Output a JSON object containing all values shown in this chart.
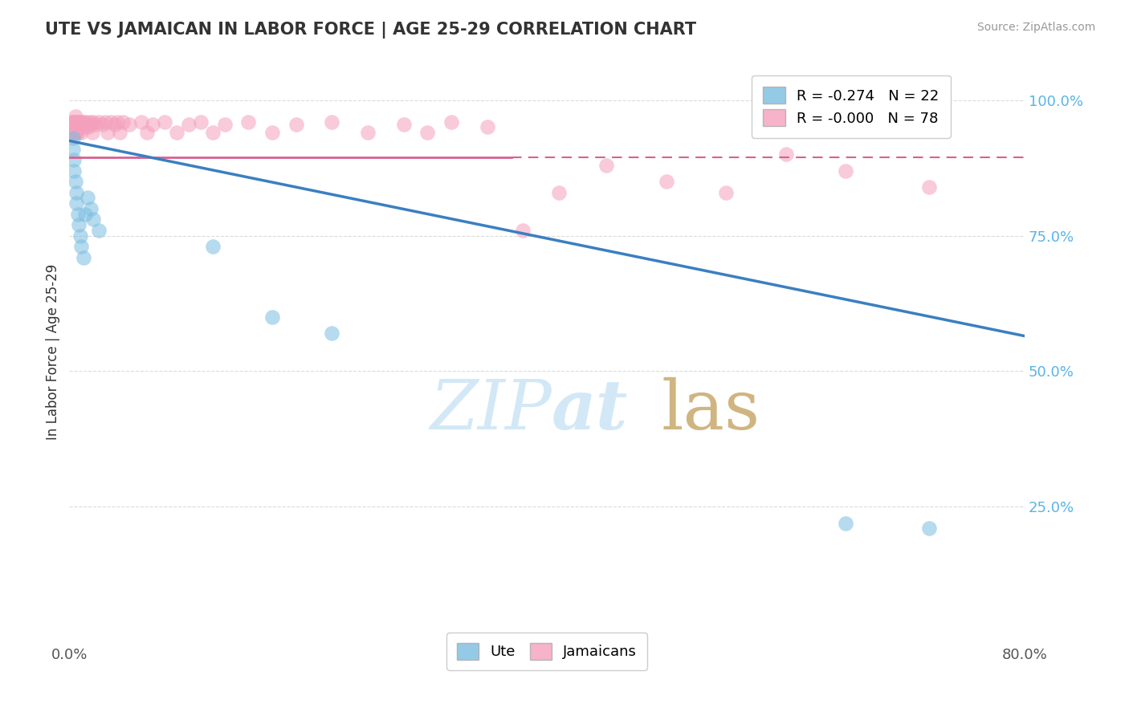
{
  "title": "UTE VS JAMAICAN IN LABOR FORCE | AGE 25-29 CORRELATION CHART",
  "source": "Source: ZipAtlas.com",
  "ylabel": "In Labor Force | Age 25-29",
  "xlim": [
    0.0,
    0.8
  ],
  "ylim": [
    0.0,
    1.07
  ],
  "yticks": [
    0.25,
    0.5,
    0.75,
    1.0
  ],
  "yticklabels": [
    "25.0%",
    "50.0%",
    "75.0%",
    "100.0%"
  ],
  "ute_R": -0.274,
  "ute_N": 22,
  "jamaican_R": -0.0,
  "jamaican_N": 78,
  "ute_color": "#7bbde0",
  "jamaican_color": "#f4a0bc",
  "ute_line_color": "#3a7fc1",
  "jamaican_line_color": "#d96090",
  "jamaican_line_solid_end": 0.37,
  "background_color": "#ffffff",
  "grid_color": "#cccccc",
  "ute_x": [
    0.003,
    0.003,
    0.004,
    0.004,
    0.005,
    0.006,
    0.006,
    0.007,
    0.008,
    0.009,
    0.01,
    0.012,
    0.013,
    0.015,
    0.018,
    0.02,
    0.025,
    0.12,
    0.17,
    0.22,
    0.65,
    0.72
  ],
  "ute_y": [
    0.93,
    0.91,
    0.89,
    0.87,
    0.85,
    0.83,
    0.81,
    0.79,
    0.77,
    0.75,
    0.73,
    0.71,
    0.79,
    0.82,
    0.8,
    0.78,
    0.76,
    0.73,
    0.6,
    0.57,
    0.22,
    0.21
  ],
  "jamaican_x": [
    0.001,
    0.001,
    0.002,
    0.002,
    0.002,
    0.003,
    0.003,
    0.003,
    0.003,
    0.004,
    0.004,
    0.004,
    0.004,
    0.005,
    0.005,
    0.005,
    0.005,
    0.005,
    0.006,
    0.006,
    0.006,
    0.007,
    0.007,
    0.007,
    0.008,
    0.008,
    0.009,
    0.009,
    0.01,
    0.01,
    0.01,
    0.012,
    0.012,
    0.013,
    0.014,
    0.015,
    0.016,
    0.017,
    0.018,
    0.019,
    0.02,
    0.022,
    0.025,
    0.028,
    0.03,
    0.032,
    0.035,
    0.038,
    0.04,
    0.042,
    0.045,
    0.05,
    0.06,
    0.065,
    0.07,
    0.08,
    0.09,
    0.1,
    0.11,
    0.12,
    0.13,
    0.15,
    0.17,
    0.19,
    0.22,
    0.25,
    0.28,
    0.3,
    0.32,
    0.35,
    0.38,
    0.41,
    0.45,
    0.5,
    0.55,
    0.6,
    0.65,
    0.72
  ],
  "jamaican_y": [
    0.955,
    0.945,
    0.96,
    0.95,
    0.94,
    0.96,
    0.955,
    0.95,
    0.94,
    0.96,
    0.955,
    0.95,
    0.94,
    0.97,
    0.96,
    0.955,
    0.95,
    0.94,
    0.96,
    0.955,
    0.94,
    0.96,
    0.955,
    0.94,
    0.96,
    0.95,
    0.96,
    0.955,
    0.96,
    0.955,
    0.94,
    0.96,
    0.955,
    0.95,
    0.96,
    0.955,
    0.95,
    0.96,
    0.955,
    0.94,
    0.96,
    0.955,
    0.96,
    0.955,
    0.96,
    0.94,
    0.96,
    0.955,
    0.96,
    0.94,
    0.96,
    0.955,
    0.96,
    0.94,
    0.955,
    0.96,
    0.94,
    0.955,
    0.96,
    0.94,
    0.955,
    0.96,
    0.94,
    0.955,
    0.96,
    0.94,
    0.955,
    0.94,
    0.96,
    0.95,
    0.76,
    0.83,
    0.88,
    0.85,
    0.83,
    0.9,
    0.87,
    0.84
  ],
  "ute_line_x0": 0.0,
  "ute_line_y0": 0.925,
  "ute_line_x1": 0.8,
  "ute_line_y1": 0.565,
  "jam_line_y": 0.895,
  "jam_line_solid_x1": 0.37
}
